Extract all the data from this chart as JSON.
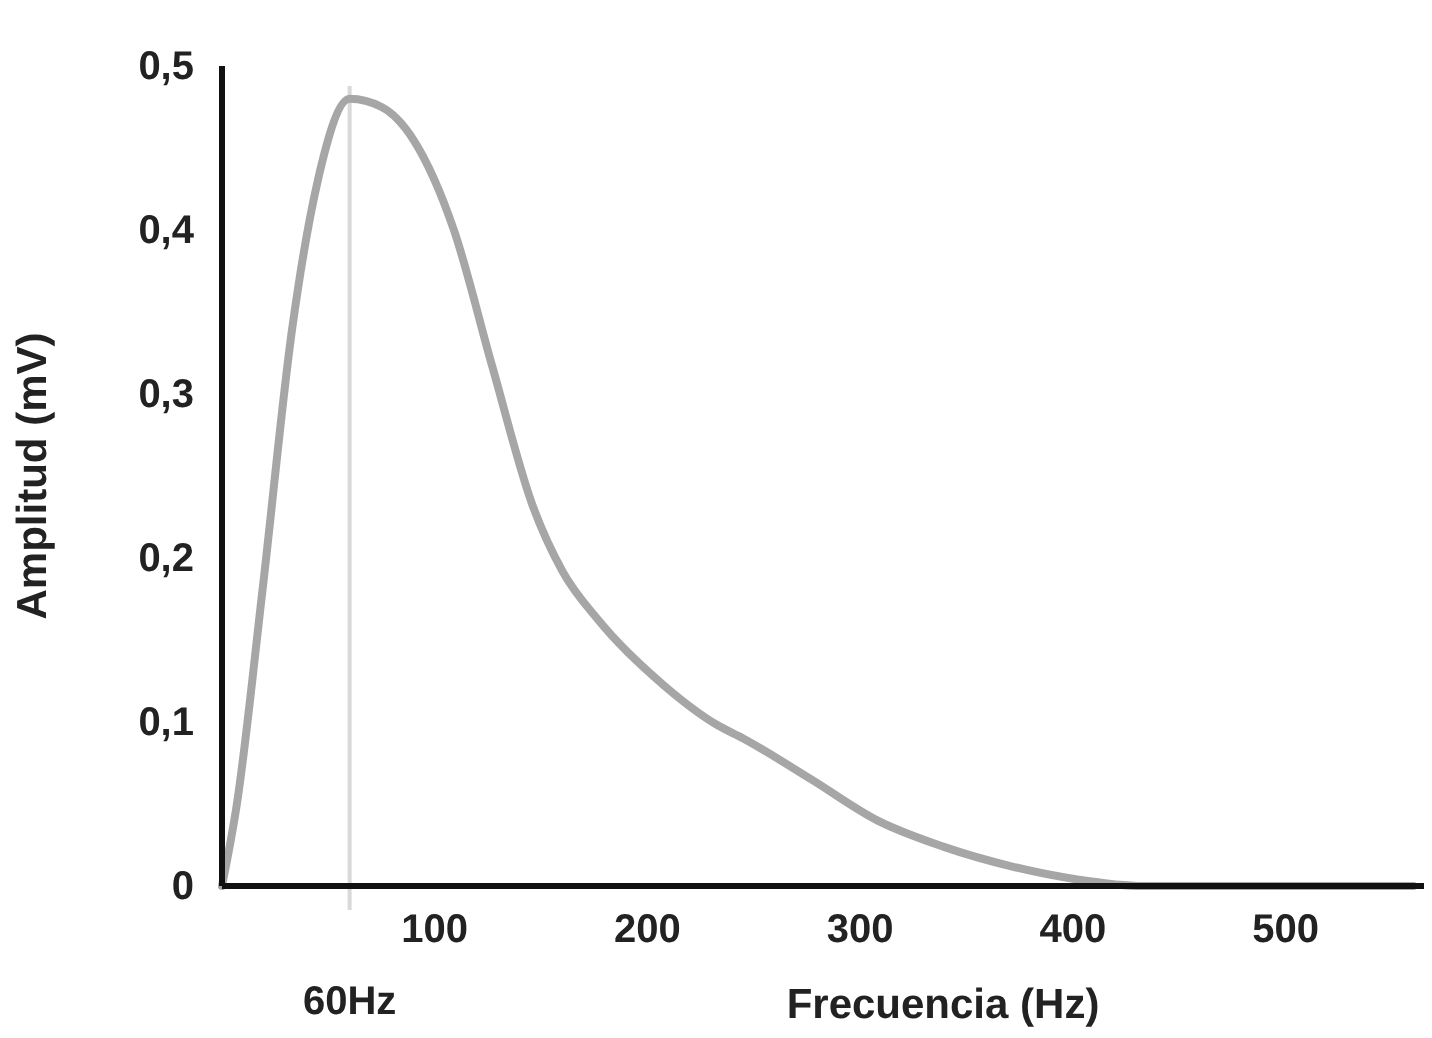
{
  "chart_data": {
    "type": "line",
    "xlabel": "Frecuencia (Hz)",
    "ylabel": "Amplitud (mV)",
    "xlim": [
      0,
      565
    ],
    "ylim": [
      0,
      0.5
    ],
    "xticks": [
      100,
      200,
      300,
      400,
      500
    ],
    "yticks": [
      {
        "value": 0,
        "label": "0"
      },
      {
        "value": 0.1,
        "label": "0,1"
      },
      {
        "value": 0.2,
        "label": "0,2"
      },
      {
        "value": 0.3,
        "label": "0,3"
      },
      {
        "value": 0.4,
        "label": "0,4"
      },
      {
        "value": 0.5,
        "label": "0,5"
      }
    ],
    "grid": false,
    "marker": "none",
    "line_style": "solid",
    "ref_lines": [
      {
        "axis": "x",
        "value": 60,
        "label": "60Hz",
        "color": "#d9d9d9"
      }
    ],
    "series": [
      {
        "color": "#a6a6a6",
        "x": [
          0,
          7,
          19,
          33,
          45,
          60,
          75,
          90,
          109,
          127,
          146,
          160,
          177,
          208,
          233,
          245,
          277,
          308,
          339,
          371,
          402,
          433,
          500,
          560
        ],
        "values": [
          0,
          0.05,
          0.18,
          0.34,
          0.43,
          0.48,
          0.475,
          0.455,
          0.4,
          0.317,
          0.232,
          0.192,
          0.162,
          0.122,
          0.098,
          0.09,
          0.065,
          0.04,
          0.024,
          0.012,
          0.004,
          0,
          0,
          0
        ]
      }
    ]
  }
}
